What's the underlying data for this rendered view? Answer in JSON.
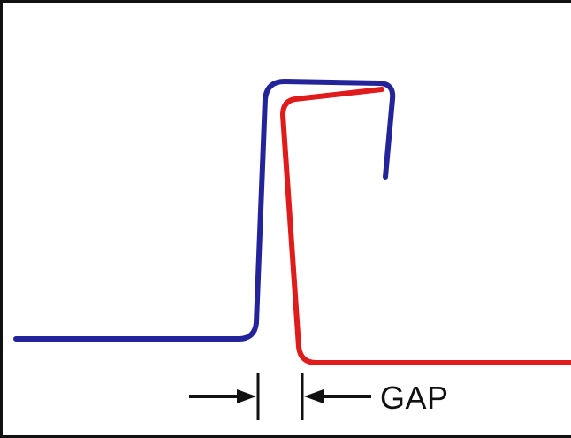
{
  "diagram": {
    "gap_label": "GAP",
    "colors": {
      "blue_profile": "#24249a",
      "red_profile": "#e01b1b",
      "dimension": "#111111",
      "border": "#111111",
      "background": "#ffffff"
    }
  }
}
